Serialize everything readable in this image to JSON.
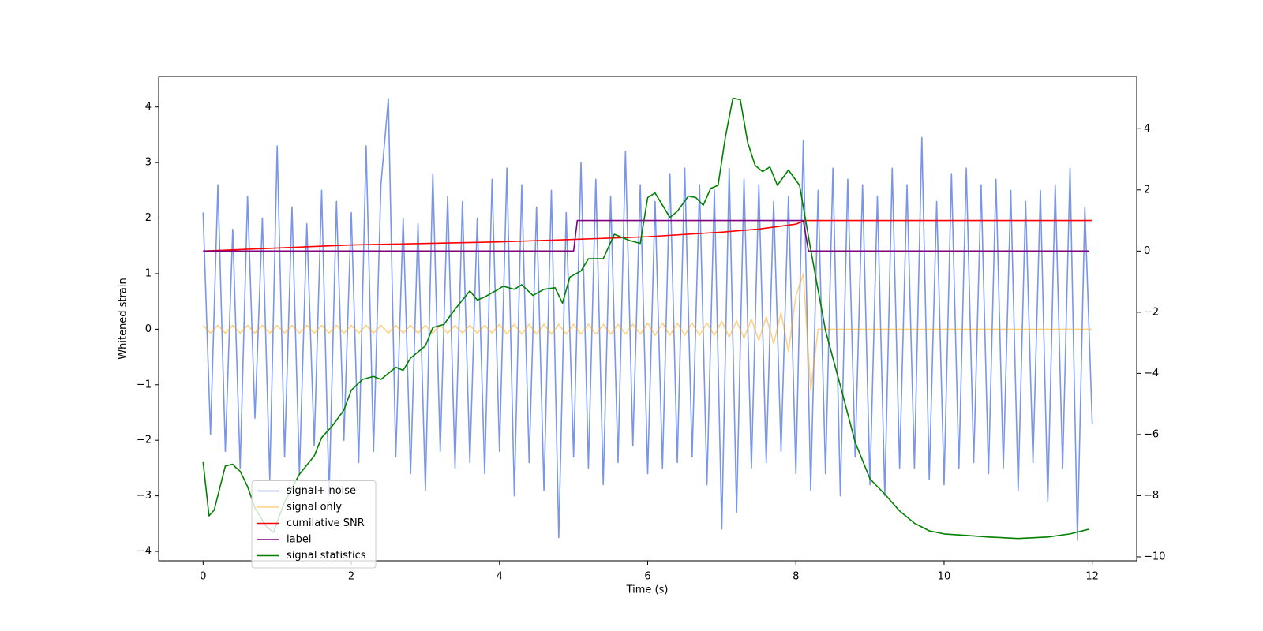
{
  "chart_data": {
    "type": "line",
    "x_label": "Time (s)",
    "y_label": "Whitened strain",
    "xlim": [
      -0.6,
      12.6
    ],
    "ylim": [
      -4.17,
      4.55
    ],
    "y2lim": [
      -10.13,
      5.71
    ],
    "xticks": [
      0,
      2,
      4,
      6,
      8,
      10,
      12
    ],
    "yticks": [
      {
        "value": -4,
        "label": "−4"
      },
      {
        "value": -3,
        "label": "−3"
      },
      {
        "value": -2,
        "label": "−2"
      },
      {
        "value": -1,
        "label": "−1"
      },
      0,
      1,
      2,
      3,
      4
    ],
    "y2ticks": [
      {
        "value": -10,
        "label": "−10"
      },
      {
        "value": -8,
        "label": "−8"
      },
      {
        "value": -6,
        "label": "−6"
      },
      {
        "value": -4,
        "label": "−4"
      },
      {
        "value": -2,
        "label": "−2"
      },
      0,
      2,
      4
    ],
    "legend": "lower left",
    "x": [
      0,
      0.1,
      0.2,
      0.3,
      0.4,
      0.5,
      0.6,
      0.7,
      0.8,
      0.9,
      1,
      1.1,
      1.2,
      1.3,
      1.4,
      1.5,
      1.6,
      1.7,
      1.8,
      1.9,
      2,
      2.1,
      2.2,
      2.3,
      2.4,
      2.5,
      2.6,
      2.7,
      2.8,
      2.9,
      3,
      3.1,
      3.2,
      3.3,
      3.4,
      3.5,
      3.6,
      3.7,
      3.8,
      3.9,
      4,
      4.1,
      4.2,
      4.3,
      4.4,
      4.5,
      4.6,
      4.7,
      4.8,
      4.9,
      5,
      5.1,
      5.2,
      5.3,
      5.4,
      5.5,
      5.6,
      5.7,
      5.8,
      5.9,
      6,
      6.1,
      6.2,
      6.3,
      6.4,
      6.5,
      6.6,
      6.7,
      6.8,
      6.9,
      7,
      7.1,
      7.2,
      7.3,
      7.4,
      7.5,
      7.6,
      7.7,
      7.8,
      7.9,
      8,
      8.1,
      8.2,
      8.3,
      8.4,
      8.5,
      8.6,
      8.7,
      8.8,
      8.9,
      9,
      9.1,
      9.2,
      9.3,
      9.4,
      9.5,
      9.6,
      9.7,
      9.8,
      9.9,
      10,
      10.1,
      10.2,
      10.3,
      10.4,
      10.5,
      10.6,
      10.7,
      10.8,
      10.9,
      11,
      11.1,
      11.2,
      11.3,
      11.4,
      11.5,
      11.6,
      11.7,
      11.8,
      11.9,
      12
    ],
    "series": [
      {
        "name": "signal+ noise",
        "color": "#4169e1",
        "alpha": 0.7,
        "values": [
          2.1,
          -1.9,
          2.6,
          -2.2,
          1.8,
          -2.5,
          2.4,
          -1.6,
          2.0,
          -2.7,
          3.3,
          -2.3,
          2.2,
          -2.6,
          1.9,
          -2.1,
          2.5,
          -3.0,
          2.3,
          -2.0,
          2.1,
          -2.4,
          3.3,
          -2.2,
          2.6,
          4.15,
          -2.3,
          2.0,
          -2.6,
          1.9,
          -2.9,
          2.8,
          -2.2,
          2.4,
          -2.5,
          2.3,
          -2.4,
          2.0,
          -2.6,
          2.7,
          -2.2,
          2.9,
          -3.0,
          2.6,
          -2.4,
          2.2,
          -2.9,
          2.5,
          -3.75,
          2.1,
          -2.3,
          3.0,
          -2.5,
          2.7,
          -2.8,
          2.4,
          -2.4,
          3.2,
          -2.1,
          2.6,
          -2.6,
          2.3,
          -2.5,
          2.8,
          -2.4,
          2.9,
          -2.3,
          2.6,
          -2.8,
          2.5,
          -3.6,
          2.9,
          -3.3,
          2.7,
          -2.5,
          2.6,
          -2.4,
          2.3,
          -2.2,
          2.4,
          -2.6,
          3.4,
          -2.9,
          2.5,
          -2.6,
          2.9,
          -3.0,
          2.7,
          -2.3,
          2.6,
          -2.8,
          2.4,
          -3.0,
          2.9,
          -2.5,
          2.6,
          -2.5,
          3.45,
          -2.7,
          2.3,
          -2.8,
          2.8,
          -2.5,
          2.9,
          -2.4,
          2.6,
          -2.6,
          2.7,
          -2.5,
          2.5,
          -2.9,
          2.3,
          -2.4,
          2.5,
          -3.1,
          2.6,
          -2.5,
          2.9,
          -3.8,
          2.2,
          -1.7
        ]
      },
      {
        "name": "signal only",
        "color": "orange",
        "alpha": 0.5,
        "values": [
          0.07,
          -0.07,
          0.07,
          -0.07,
          0.07,
          -0.07,
          0.07,
          -0.07,
          0.07,
          -0.07,
          0.07,
          -0.07,
          0.07,
          -0.07,
          0.07,
          -0.07,
          0.07,
          -0.07,
          0.07,
          -0.07,
          0.07,
          -0.07,
          0.07,
          -0.07,
          0.07,
          -0.07,
          0.07,
          -0.07,
          0.07,
          -0.07,
          0.07,
          -0.07,
          0.07,
          -0.07,
          0.07,
          -0.07,
          0.07,
          -0.07,
          0.07,
          -0.07,
          0.09,
          -0.09,
          0.09,
          -0.09,
          0.09,
          -0.09,
          0.09,
          -0.09,
          0.09,
          -0.09,
          0.09,
          -0.09,
          0.09,
          -0.09,
          0.09,
          -0.09,
          0.09,
          -0.09,
          0.09,
          -0.09,
          0.11,
          -0.11,
          0.11,
          -0.11,
          0.11,
          -0.11,
          0.11,
          -0.11,
          0.11,
          -0.11,
          0.14,
          -0.14,
          0.15,
          -0.16,
          0.18,
          -0.2,
          0.22,
          -0.26,
          0.3,
          -0.4,
          0.6,
          1.0,
          -1.1,
          0,
          0,
          0,
          0,
          0,
          0,
          0,
          0,
          0,
          0,
          0,
          0,
          0,
          0,
          0,
          0,
          0,
          0,
          0,
          0,
          0,
          0,
          0,
          0,
          0,
          0,
          0,
          0,
          0,
          0,
          0,
          0,
          0,
          0,
          0,
          0,
          0,
          0
        ]
      },
      {
        "name": "cumilative SNR",
        "color": "red",
        "axis": "y2",
        "x": [
          0,
          2,
          4,
          5,
          6,
          7,
          7.5,
          8,
          8.12,
          12
        ],
        "values": [
          0,
          0.2,
          0.3,
          0.38,
          0.47,
          0.62,
          0.72,
          0.88,
          1.0,
          1.0
        ]
      },
      {
        "name": "label",
        "color": "purple",
        "axis": "y2",
        "x": [
          0,
          5.0,
          5.05,
          8.1,
          8.17,
          11.95
        ],
        "values": [
          0,
          0,
          1,
          1,
          0,
          0
        ]
      },
      {
        "name": "signal statistics",
        "color": "green",
        "axis": "y2",
        "x": [
          0,
          0.08,
          0.15,
          0.3,
          0.4,
          0.45,
          0.5,
          0.6,
          0.7,
          0.85,
          0.95,
          1.1,
          1.3,
          1.5,
          1.6,
          1.75,
          1.9,
          2.0,
          2.15,
          2.3,
          2.4,
          2.6,
          2.7,
          2.8,
          3.0,
          3.1,
          3.25,
          3.4,
          3.6,
          3.7,
          3.8,
          3.95,
          4.05,
          4.2,
          4.3,
          4.45,
          4.6,
          4.75,
          4.85,
          4.95,
          5.1,
          5.2,
          5.4,
          5.55,
          5.75,
          5.9,
          6.0,
          6.1,
          6.2,
          6.3,
          6.4,
          6.55,
          6.65,
          6.75,
          6.85,
          6.95,
          7.05,
          7.15,
          7.25,
          7.35,
          7.45,
          7.55,
          7.65,
          7.75,
          7.9,
          8.05,
          8.2,
          8.4,
          8.6,
          8.8,
          9.0,
          9.2,
          9.4,
          9.6,
          9.8,
          10.0,
          10.3,
          10.6,
          11.0,
          11.4,
          11.7,
          11.95
        ],
        "values": [
          -6.9,
          -8.66,
          -8.47,
          -7.03,
          -6.97,
          -7.1,
          -7.2,
          -7.7,
          -8.4,
          -9.0,
          -9.2,
          -8.2,
          -7.3,
          -6.7,
          -6.1,
          -5.7,
          -5.2,
          -4.55,
          -4.2,
          -4.1,
          -4.2,
          -3.8,
          -3.9,
          -3.5,
          -3.1,
          -2.5,
          -2.4,
          -1.9,
          -1.3,
          -1.6,
          -1.5,
          -1.3,
          -1.15,
          -1.25,
          -1.1,
          -1.45,
          -1.25,
          -1.2,
          -1.7,
          -0.85,
          -0.65,
          -0.25,
          -0.25,
          0.55,
          0.35,
          0.25,
          1.75,
          1.9,
          1.5,
          1.1,
          1.3,
          1.8,
          1.75,
          1.5,
          2.05,
          2.15,
          3.75,
          5.0,
          4.95,
          3.55,
          2.8,
          2.6,
          2.75,
          2.15,
          2.65,
          2.15,
          0.05,
          -2.6,
          -4.4,
          -6.25,
          -7.45,
          -7.95,
          -8.5,
          -8.9,
          -9.15,
          -9.25,
          -9.3,
          -9.35,
          -9.4,
          -9.35,
          -9.25,
          -9.1
        ]
      }
    ]
  }
}
